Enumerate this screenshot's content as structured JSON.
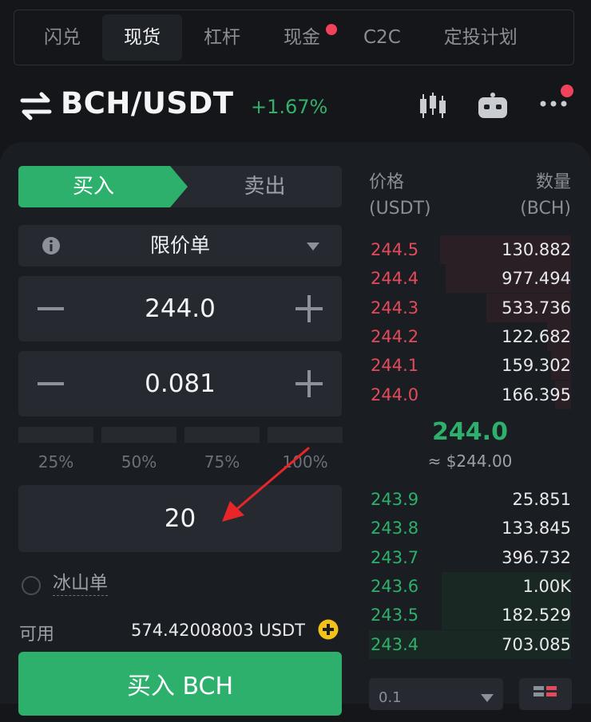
{
  "tabs": [
    {
      "label": "闪兑",
      "active": false,
      "dot": false
    },
    {
      "label": "现货",
      "active": true,
      "dot": false
    },
    {
      "label": "杠杆",
      "active": false,
      "dot": false
    },
    {
      "label": "现金",
      "active": false,
      "dot": true
    },
    {
      "label": "C2C",
      "active": false,
      "dot": false
    },
    {
      "label": "定投计划",
      "active": false,
      "dot": false
    }
  ],
  "header": {
    "pair": "BCH/USDT",
    "change": "+1.67%",
    "icons": [
      "swap-icon",
      "candlestick-icon",
      "robot-icon",
      "more-icon"
    ]
  },
  "trade": {
    "buy_label": "买入",
    "sell_label": "卖出",
    "order_type": "限价单",
    "price": "244.0",
    "amount": "0.081",
    "percent_options": [
      "25%",
      "50%",
      "75%",
      "100%"
    ],
    "total": "20",
    "iceberg_label": "冰山单",
    "available_label": "可用",
    "available_value": "574.42008003 USDT",
    "buy_button": "买入 BCH"
  },
  "orderbook": {
    "price_header": "价格",
    "price_unit": "(USDT)",
    "qty_header": "数量",
    "qty_unit": "(BCH)",
    "asks": [
      {
        "price": "244.5",
        "qty": "130.882",
        "depth": 0.65
      },
      {
        "price": "244.4",
        "qty": "977.494",
        "depth": 0.62
      },
      {
        "price": "244.3",
        "qty": "533.736",
        "depth": 0.42
      },
      {
        "price": "244.2",
        "qty": "122.682",
        "depth": 0.12
      },
      {
        "price": "244.1",
        "qty": "159.302",
        "depth": 0.1
      },
      {
        "price": "244.0",
        "qty": "166.395",
        "depth": 0.08
      }
    ],
    "last_price": "244.0",
    "last_price_usd": "≈ $244.00",
    "bids": [
      {
        "price": "243.9",
        "qty": "25.851",
        "depth": 0.0
      },
      {
        "price": "243.8",
        "qty": "133.845",
        "depth": 0.0
      },
      {
        "price": "243.7",
        "qty": "396.732",
        "depth": 0.0
      },
      {
        "price": "243.6",
        "qty": "1.00K",
        "depth": 0.64
      },
      {
        "price": "243.5",
        "qty": "182.529",
        "depth": 0.64
      },
      {
        "price": "243.4",
        "qty": "703.085",
        "depth": 1.0
      }
    ],
    "depth_value": "0.1"
  },
  "colors": {
    "buy": "#2cb06c",
    "sell": "#e34b5a",
    "alert_dot": "#f0425a",
    "annotation_arrow": "#e8262a",
    "add_icon": "#f2c21b"
  }
}
